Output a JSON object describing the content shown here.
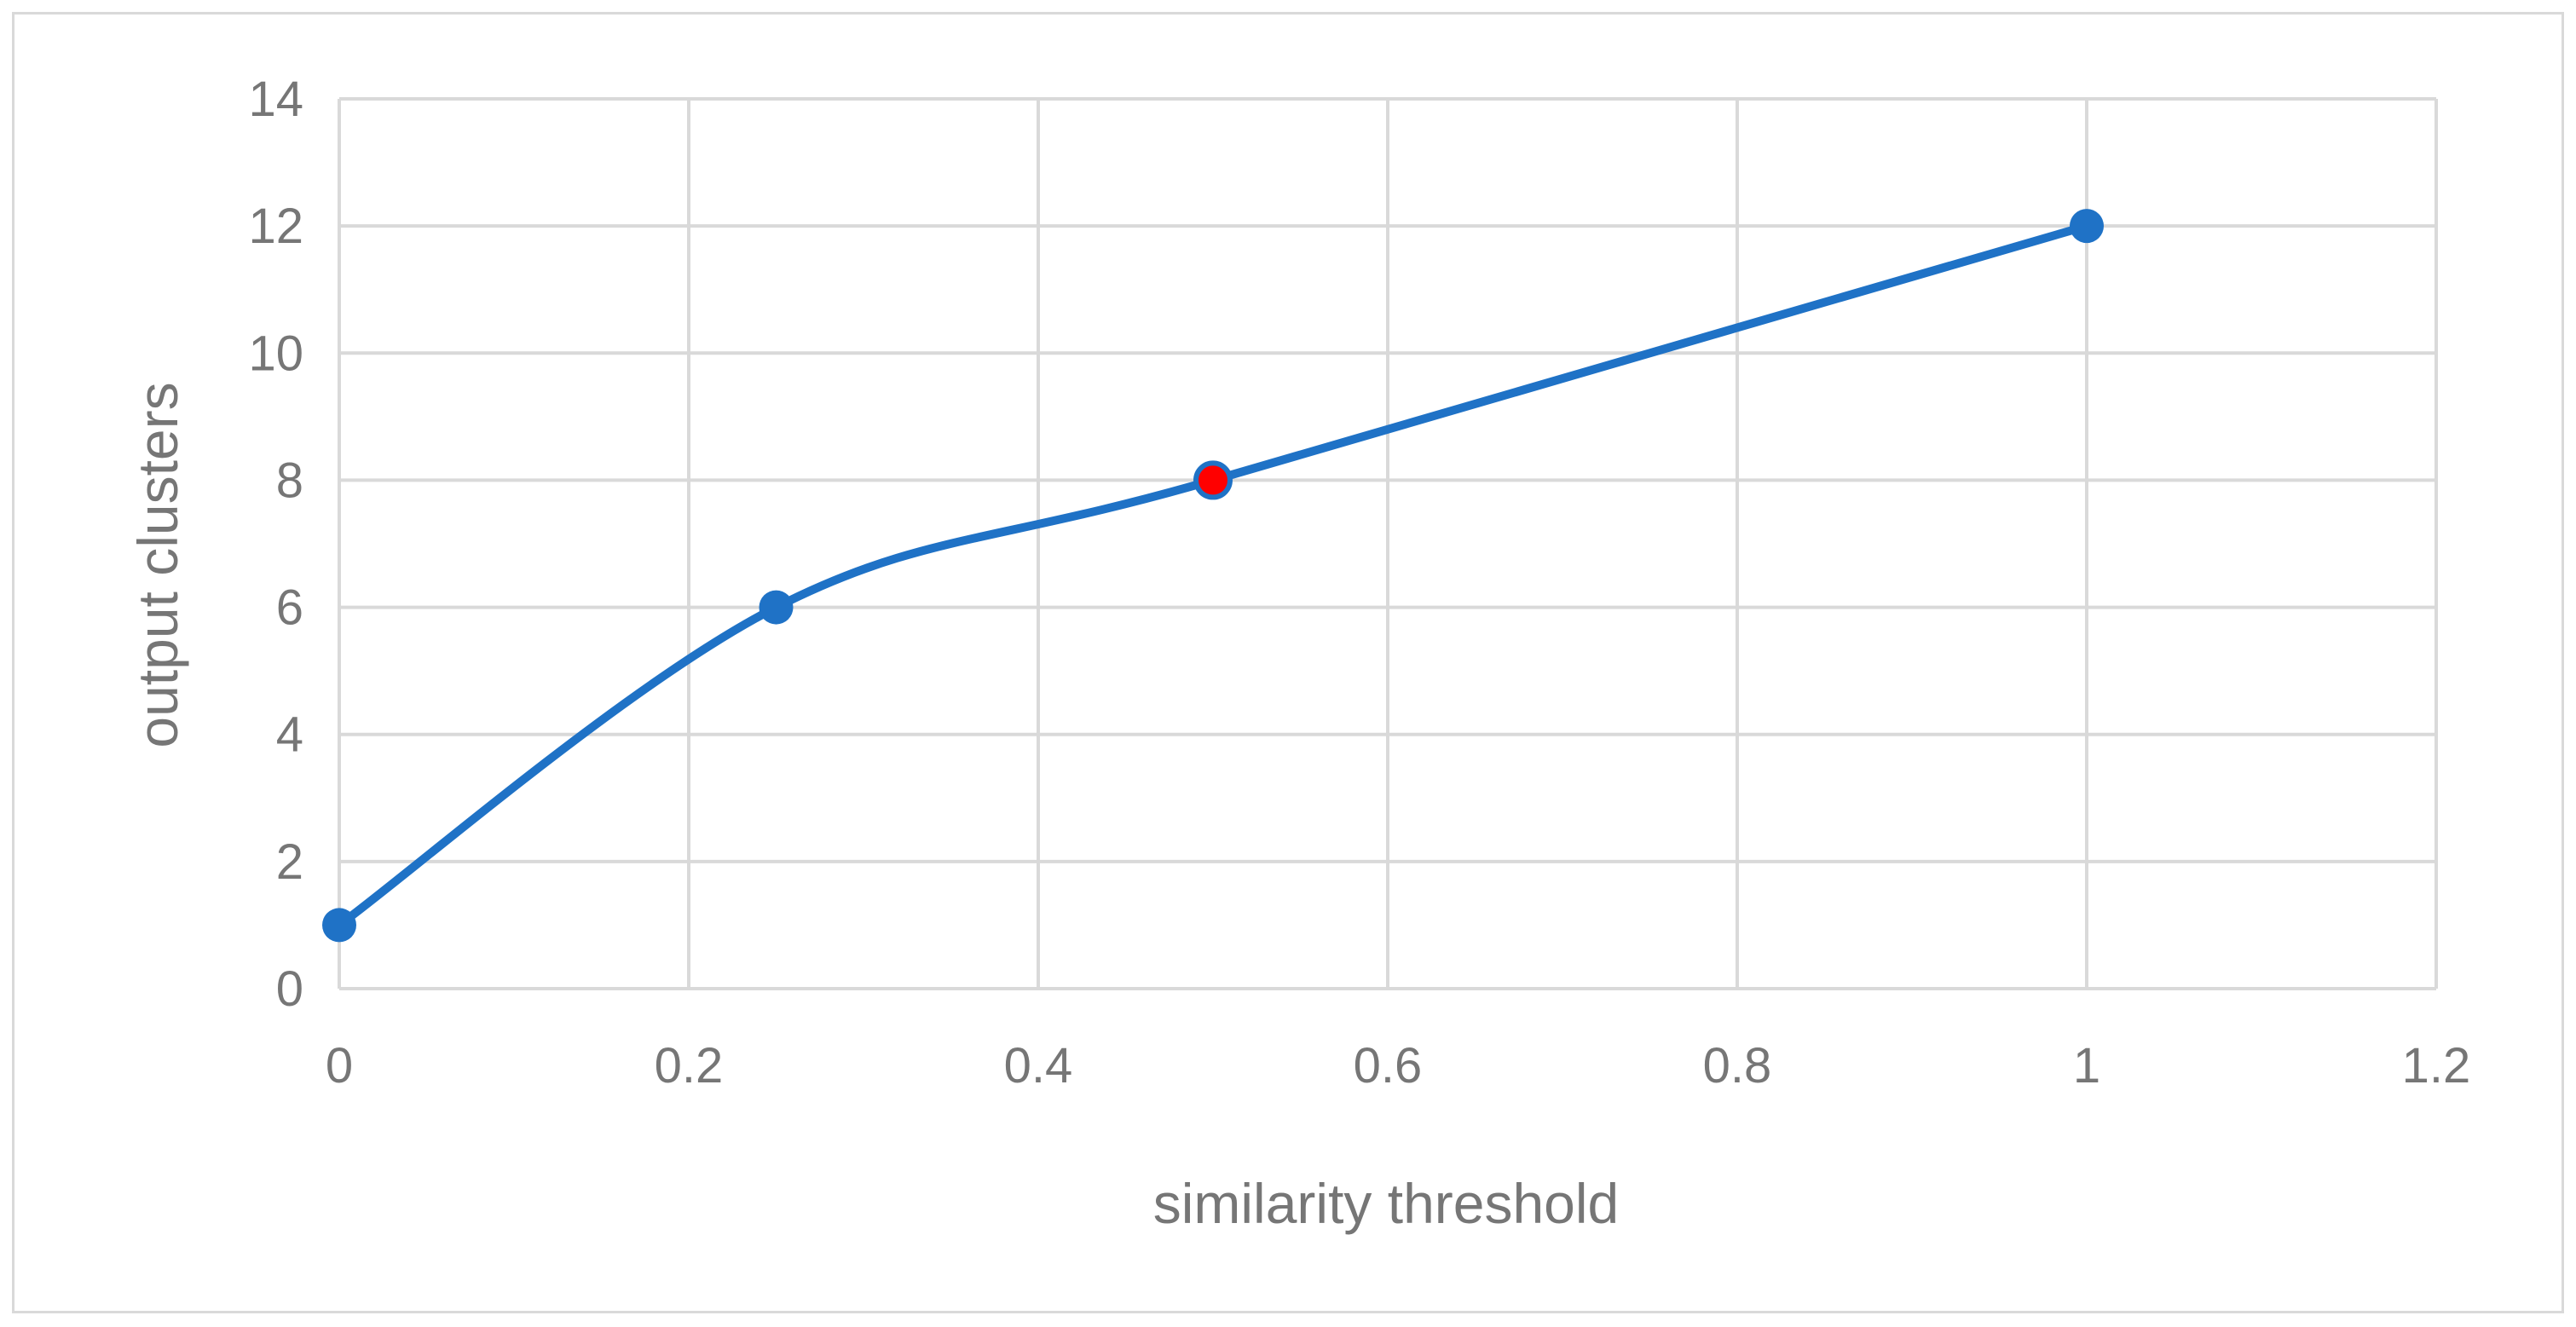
{
  "chart_data": {
    "type": "scatter",
    "title": "",
    "xlabel": "similarity threshold",
    "ylabel": "output clusters",
    "xlim": [
      0,
      1.2
    ],
    "ylim": [
      0,
      14
    ],
    "x_ticks": [
      0,
      0.2,
      0.4,
      0.6,
      0.8,
      1,
      1.2
    ],
    "x_tick_labels": [
      "0",
      "0.2",
      "0.4",
      "0.6",
      "0.8",
      "1",
      "1.2"
    ],
    "y_ticks": [
      0,
      2,
      4,
      6,
      8,
      10,
      12,
      14
    ],
    "y_tick_labels": [
      "0",
      "2",
      "4",
      "6",
      "8",
      "10",
      "12",
      "14"
    ],
    "grid": true,
    "smoothed_line": true,
    "series": [
      {
        "x": [
          0,
          0.25,
          0.5,
          1
        ],
        "y": [
          1,
          6,
          8,
          12
        ],
        "color": "#1f72c6",
        "highlighted_point_index": 2,
        "highlight_color": "#ff0000"
      }
    ]
  }
}
